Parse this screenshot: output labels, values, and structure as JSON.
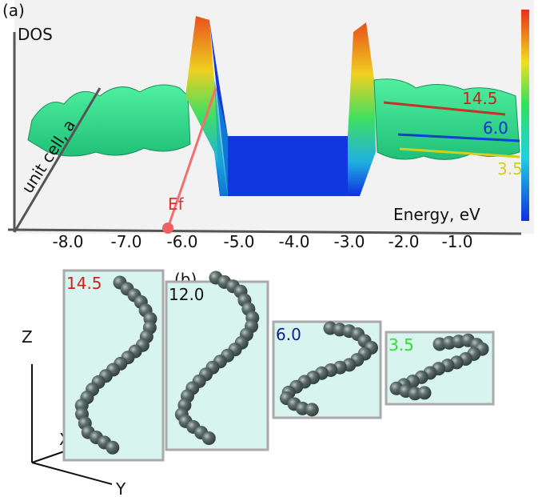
{
  "panel_a": {
    "label": "(a)",
    "y_axis": "DOS",
    "depth_axis": "unit cell, a",
    "x_axis": "Energy, eV",
    "fermi": "Ef",
    "xticks": [
      "-8.0",
      "-7.0",
      "-6.0",
      "-5.0",
      "-4.0",
      "-3.0",
      "-2.0",
      "-1.0"
    ],
    "lines": [
      {
        "label": "14.5"
      },
      {
        "label": "6.0"
      },
      {
        "label": "3.5"
      }
    ]
  },
  "panel_b": {
    "label": "(b)",
    "axes": [
      "Z",
      "X",
      "Y"
    ],
    "helices": [
      {
        "label": "14.5"
      },
      {
        "label": "12.0"
      },
      {
        "label": "6.0"
      },
      {
        "label": "3.5"
      }
    ]
  }
}
